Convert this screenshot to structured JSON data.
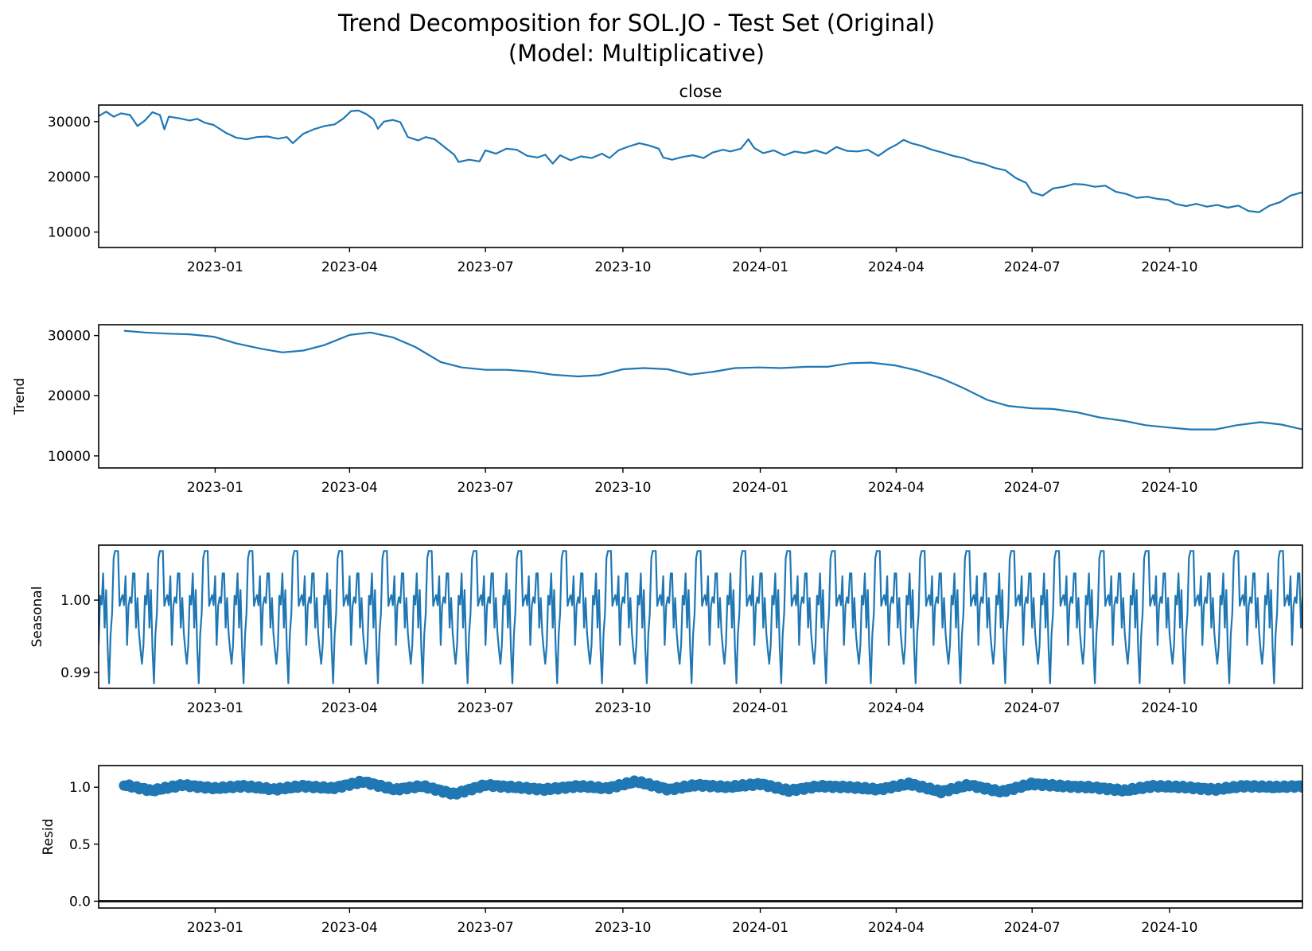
{
  "title_line1": "Trend Decomposition for SOL.JO - Test Set (Original)",
  "title_line2": "(Model: Multiplicative)",
  "x_tick_labels": [
    "2023-01",
    "2023-04",
    "2023-07",
    "2023-10",
    "2024-01",
    "2024-04",
    "2024-07",
    "2024-10"
  ],
  "colors": {
    "series": "#1f77b4",
    "axes": "#000000",
    "background": "#ffffff"
  },
  "chart_data": [
    {
      "type": "line",
      "title": "close",
      "ylabel": "",
      "xlim": [
        "2022-10-15",
        "2024-12-29"
      ],
      "ylim": [
        7200,
        33000
      ],
      "yticks": [
        10000,
        20000,
        30000
      ],
      "ytick_labels": [
        "10000",
        "20000",
        "30000"
      ],
      "grid": false,
      "series": [
        {
          "values": [
            [
              "2022-10-15",
              31000
            ],
            [
              "2022-10-20",
              31800
            ],
            [
              "2022-10-25",
              30900
            ],
            [
              "2022-10-30",
              31500
            ],
            [
              "2022-11-05",
              31200
            ],
            [
              "2022-11-10",
              29200
            ],
            [
              "2022-11-15",
              30200
            ],
            [
              "2022-11-20",
              31700
            ],
            [
              "2022-11-25",
              31200
            ],
            [
              "2022-11-28",
              28600
            ],
            [
              "2022-12-01",
              30900
            ],
            [
              "2022-12-08",
              30600
            ],
            [
              "2022-12-15",
              30200
            ],
            [
              "2022-12-20",
              30500
            ],
            [
              "2022-12-25",
              29800
            ],
            [
              "2022-12-31",
              29400
            ],
            [
              "2023-01-08",
              28000
            ],
            [
              "2023-01-15",
              27100
            ],
            [
              "2023-01-22",
              26800
            ],
            [
              "2023-01-29",
              27200
            ],
            [
              "2023-02-05",
              27300
            ],
            [
              "2023-02-12",
              26900
            ],
            [
              "2023-02-18",
              27200
            ],
            [
              "2023-02-22",
              26100
            ],
            [
              "2023-03-01",
              27800
            ],
            [
              "2023-03-08",
              28600
            ],
            [
              "2023-03-15",
              29200
            ],
            [
              "2023-03-22",
              29500
            ],
            [
              "2023-03-28",
              30600
            ],
            [
              "2023-04-02",
              31900
            ],
            [
              "2023-04-07",
              32000
            ],
            [
              "2023-04-12",
              31400
            ],
            [
              "2023-04-17",
              30400
            ],
            [
              "2023-04-20",
              28700
            ],
            [
              "2023-04-24",
              30000
            ],
            [
              "2023-04-30",
              30300
            ],
            [
              "2023-05-05",
              29900
            ],
            [
              "2023-05-10",
              27200
            ],
            [
              "2023-05-17",
              26600
            ],
            [
              "2023-05-22",
              27200
            ],
            [
              "2023-05-28",
              26800
            ],
            [
              "2023-06-04",
              25300
            ],
            [
              "2023-06-10",
              24000
            ],
            [
              "2023-06-13",
              22700
            ],
            [
              "2023-06-20",
              23100
            ],
            [
              "2023-06-27",
              22800
            ],
            [
              "2023-07-01",
              24800
            ],
            [
              "2023-07-08",
              24200
            ],
            [
              "2023-07-15",
              25100
            ],
            [
              "2023-07-22",
              24900
            ],
            [
              "2023-07-29",
              23800
            ],
            [
              "2023-08-05",
              23500
            ],
            [
              "2023-08-10",
              24000
            ],
            [
              "2023-08-15",
              22400
            ],
            [
              "2023-08-20",
              23900
            ],
            [
              "2023-08-27",
              23000
            ],
            [
              "2023-09-03",
              23700
            ],
            [
              "2023-09-10",
              23400
            ],
            [
              "2023-09-17",
              24200
            ],
            [
              "2023-09-22",
              23400
            ],
            [
              "2023-09-28",
              24800
            ],
            [
              "2023-10-05",
              25500
            ],
            [
              "2023-10-12",
              26100
            ],
            [
              "2023-10-18",
              25700
            ],
            [
              "2023-10-25",
              25100
            ],
            [
              "2023-10-28",
              23500
            ],
            [
              "2023-11-03",
              23100
            ],
            [
              "2023-11-10",
              23600
            ],
            [
              "2023-11-17",
              23900
            ],
            [
              "2023-11-24",
              23400
            ],
            [
              "2023-11-30",
              24400
            ],
            [
              "2023-12-07",
              24900
            ],
            [
              "2023-12-12",
              24600
            ],
            [
              "2023-12-19",
              25100
            ],
            [
              "2023-12-24",
              26800
            ],
            [
              "2023-12-28",
              25200
            ],
            [
              "2024-01-03",
              24300
            ],
            [
              "2024-01-10",
              24800
            ],
            [
              "2024-01-17",
              23900
            ],
            [
              "2024-01-24",
              24600
            ],
            [
              "2024-01-31",
              24300
            ],
            [
              "2024-02-07",
              24800
            ],
            [
              "2024-02-14",
              24200
            ],
            [
              "2024-02-21",
              25400
            ],
            [
              "2024-02-28",
              24700
            ],
            [
              "2024-03-06",
              24600
            ],
            [
              "2024-03-13",
              24900
            ],
            [
              "2024-03-20",
              23800
            ],
            [
              "2024-03-27",
              25100
            ],
            [
              "2024-04-01",
              25800
            ],
            [
              "2024-04-06",
              26700
            ],
            [
              "2024-04-11",
              26100
            ],
            [
              "2024-04-18",
              25600
            ],
            [
              "2024-04-25",
              24900
            ],
            [
              "2024-05-02",
              24400
            ],
            [
              "2024-05-09",
              23800
            ],
            [
              "2024-05-16",
              23400
            ],
            [
              "2024-05-23",
              22700
            ],
            [
              "2024-05-30",
              22300
            ],
            [
              "2024-06-06",
              21600
            ],
            [
              "2024-06-13",
              21200
            ],
            [
              "2024-06-20",
              19800
            ],
            [
              "2024-06-27",
              18900
            ],
            [
              "2024-07-01",
              17200
            ],
            [
              "2024-07-08",
              16600
            ],
            [
              "2024-07-15",
              17900
            ],
            [
              "2024-07-22",
              18200
            ],
            [
              "2024-07-29",
              18700
            ],
            [
              "2024-08-05",
              18600
            ],
            [
              "2024-08-12",
              18200
            ],
            [
              "2024-08-19",
              18400
            ],
            [
              "2024-08-26",
              17300
            ],
            [
              "2024-09-02",
              16900
            ],
            [
              "2024-09-09",
              16200
            ],
            [
              "2024-09-16",
              16400
            ],
            [
              "2024-09-23",
              16000
            ],
            [
              "2024-09-30",
              15800
            ],
            [
              "2024-10-05",
              15100
            ],
            [
              "2024-10-12",
              14700
            ],
            [
              "2024-10-19",
              15100
            ],
            [
              "2024-10-26",
              14600
            ],
            [
              "2024-11-02",
              14900
            ],
            [
              "2024-11-09",
              14400
            ],
            [
              "2024-11-16",
              14800
            ],
            [
              "2024-11-23",
              13800
            ],
            [
              "2024-11-30",
              13600
            ],
            [
              "2024-12-07",
              14800
            ],
            [
              "2024-12-14",
              15400
            ],
            [
              "2024-12-21",
              16600
            ],
            [
              "2024-12-29",
              17200
            ]
          ]
        }
      ]
    },
    {
      "type": "line",
      "title": "",
      "ylabel": "Trend",
      "xlim": [
        "2022-10-15",
        "2024-12-29"
      ],
      "ylim": [
        8000,
        31800
      ],
      "yticks": [
        10000,
        20000,
        30000
      ],
      "ytick_labels": [
        "10000",
        "20000",
        "30000"
      ],
      "grid": false,
      "series": [
        {
          "values": [
            [
              "2022-11-01",
              30800
            ],
            [
              "2022-11-15",
              30500
            ],
            [
              "2022-12-01",
              30300
            ],
            [
              "2022-12-15",
              30200
            ],
            [
              "2022-12-31",
              29800
            ],
            [
              "2023-01-15",
              28700
            ],
            [
              "2023-02-01",
              27800
            ],
            [
              "2023-02-15",
              27200
            ],
            [
              "2023-03-01",
              27500
            ],
            [
              "2023-03-15",
              28400
            ],
            [
              "2023-04-01",
              30100
            ],
            [
              "2023-04-15",
              30500
            ],
            [
              "2023-04-30",
              29700
            ],
            [
              "2023-05-15",
              28100
            ],
            [
              "2023-06-01",
              25600
            ],
            [
              "2023-06-15",
              24700
            ],
            [
              "2023-07-01",
              24300
            ],
            [
              "2023-07-15",
              24300
            ],
            [
              "2023-08-01",
              24000
            ],
            [
              "2023-08-15",
              23500
            ],
            [
              "2023-09-01",
              23200
            ],
            [
              "2023-09-15",
              23400
            ],
            [
              "2023-10-01",
              24400
            ],
            [
              "2023-10-15",
              24600
            ],
            [
              "2023-10-31",
              24400
            ],
            [
              "2023-11-15",
              23500
            ],
            [
              "2023-12-01",
              24000
            ],
            [
              "2023-12-15",
              24600
            ],
            [
              "2023-12-31",
              24700
            ],
            [
              "2024-01-15",
              24600
            ],
            [
              "2024-02-01",
              24800
            ],
            [
              "2024-02-15",
              24800
            ],
            [
              "2024-03-01",
              25400
            ],
            [
              "2024-03-15",
              25500
            ],
            [
              "2024-04-01",
              25000
            ],
            [
              "2024-04-15",
              24200
            ],
            [
              "2024-05-01",
              22900
            ],
            [
              "2024-05-15",
              21400
            ],
            [
              "2024-06-01",
              19300
            ],
            [
              "2024-06-15",
              18300
            ],
            [
              "2024-07-01",
              17900
            ],
            [
              "2024-07-15",
              17800
            ],
            [
              "2024-08-01",
              17200
            ],
            [
              "2024-08-15",
              16400
            ],
            [
              "2024-09-01",
              15800
            ],
            [
              "2024-09-15",
              15100
            ],
            [
              "2024-10-01",
              14700
            ],
            [
              "2024-10-15",
              14400
            ],
            [
              "2024-11-01",
              14400
            ],
            [
              "2024-11-15",
              15100
            ],
            [
              "2024-12-01",
              15600
            ],
            [
              "2024-12-15",
              15200
            ],
            [
              "2024-12-29",
              14400
            ]
          ]
        }
      ]
    },
    {
      "type": "line",
      "title": "",
      "ylabel": "Seasonal",
      "xlim": [
        "2022-10-15",
        "2024-12-29"
      ],
      "ylim": [
        0.9878,
        1.0076
      ],
      "yticks": [
        0.99,
        1.0
      ],
      "ytick_labels": [
        "0.99",
        "1.00"
      ],
      "grid": false,
      "period_days": 30,
      "pattern": [
        0.9938,
        1.0006,
        0.9994,
        1.0037,
        0.9962,
        1.0014,
        0.9934,
        0.9885,
        0.9952,
        0.9982,
        1.0058,
        1.0068,
        1.0068,
        1.0068,
        0.9992,
        1.0001,
        1.0007,
        0.9993,
        1.0033,
        0.9938,
        0.9992,
        1.0004,
        0.9996,
        1.0037,
        1.0037,
        0.9962,
        1.0003,
        0.9955,
        0.9931,
        0.9912
      ]
    },
    {
      "type": "scatter",
      "title": "",
      "ylabel": "Resid",
      "xlim": [
        "2022-10-15",
        "2024-12-29"
      ],
      "ylim": [
        -0.06,
        1.19
      ],
      "yticks": [
        0.0,
        0.5,
        1.0
      ],
      "ytick_labels": [
        "0.0",
        "0.5",
        "1.0"
      ],
      "grid": false,
      "baseline": 0.0,
      "series": [
        {
          "values": [
            [
              "2022-11-01",
              1.02
            ],
            [
              "2022-11-20",
              0.97
            ],
            [
              "2022-12-10",
              1.02
            ],
            [
              "2023-01-01",
              0.99
            ],
            [
              "2023-01-20",
              1.01
            ],
            [
              "2023-02-10",
              0.98
            ],
            [
              "2023-03-01",
              1.01
            ],
            [
              "2023-03-20",
              0.99
            ],
            [
              "2023-04-10",
              1.05
            ],
            [
              "2023-05-01",
              0.98
            ],
            [
              "2023-05-20",
              1.01
            ],
            [
              "2023-06-10",
              0.94
            ],
            [
              "2023-07-01",
              1.02
            ],
            [
              "2023-07-20",
              1.0
            ],
            [
              "2023-08-10",
              0.98
            ],
            [
              "2023-09-01",
              1.01
            ],
            [
              "2023-09-20",
              0.99
            ],
            [
              "2023-10-10",
              1.05
            ],
            [
              "2023-11-01",
              0.98
            ],
            [
              "2023-11-20",
              1.02
            ],
            [
              "2023-12-10",
              1.0
            ],
            [
              "2024-01-01",
              1.03
            ],
            [
              "2024-01-20",
              0.97
            ],
            [
              "2024-02-10",
              1.01
            ],
            [
              "2024-03-01",
              1.0
            ],
            [
              "2024-03-20",
              0.98
            ],
            [
              "2024-04-10",
              1.03
            ],
            [
              "2024-05-01",
              0.96
            ],
            [
              "2024-05-20",
              1.02
            ],
            [
              "2024-06-10",
              0.96
            ],
            [
              "2024-07-01",
              1.03
            ],
            [
              "2024-07-20",
              1.01
            ],
            [
              "2024-08-10",
              1.0
            ],
            [
              "2024-09-01",
              0.97
            ],
            [
              "2024-09-20",
              1.01
            ],
            [
              "2024-10-10",
              1.0
            ],
            [
              "2024-11-01",
              0.98
            ],
            [
              "2024-11-20",
              1.01
            ],
            [
              "2024-12-10",
              1.0
            ],
            [
              "2024-12-29",
              1.01
            ]
          ]
        }
      ]
    }
  ]
}
